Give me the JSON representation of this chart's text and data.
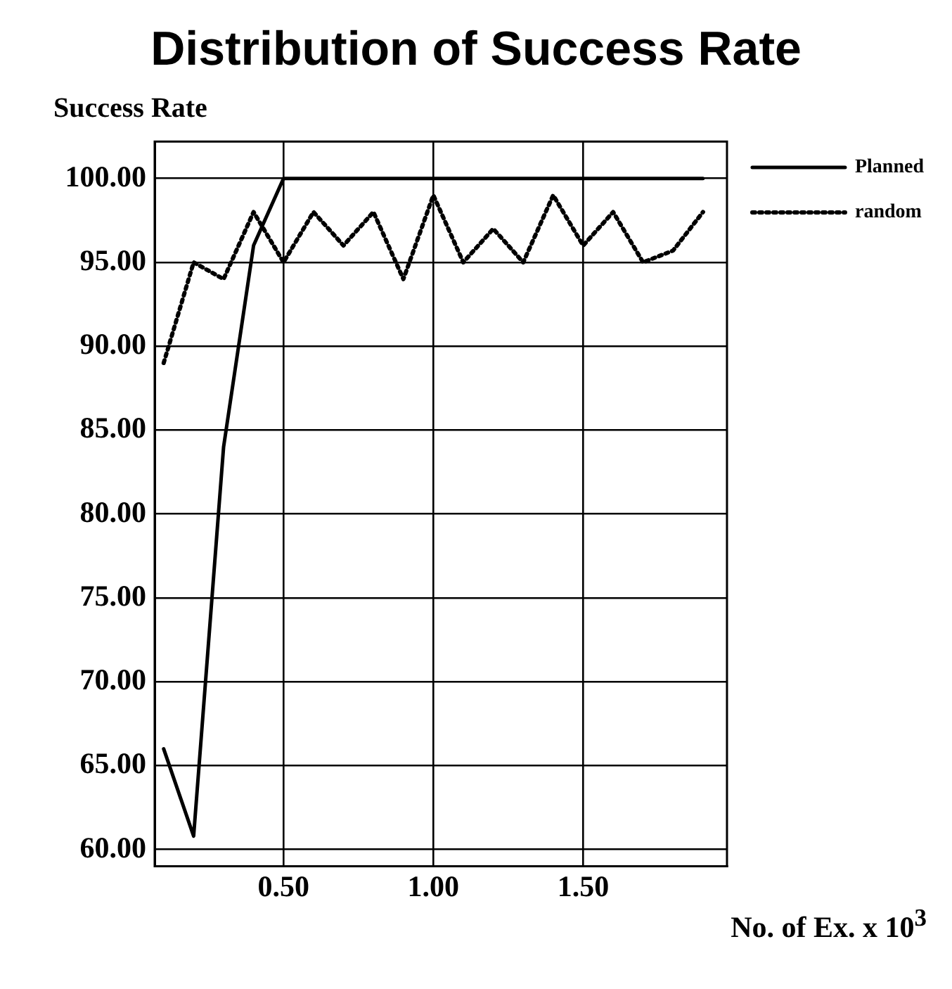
{
  "chart_data": {
    "type": "line",
    "title": "Distribution of Success Rate",
    "xlabel": "No. of Ex. x 10$^{3}$",
    "ylabel": "Success Rate",
    "series": [
      {
        "name": "Planned",
        "color": "#000000",
        "line_style": "solid",
        "x": [
          0.1,
          0.2,
          0.3,
          0.4,
          0.5,
          1.9
        ],
        "values": [
          66,
          60.8,
          84,
          96,
          100,
          100
        ]
      },
      {
        "name": "random",
        "color": "#000000",
        "line_style": "dotted",
        "x": [
          0.1,
          0.2,
          0.3,
          0.4,
          0.5,
          0.6,
          0.7,
          0.8,
          0.9,
          1.0,
          1.1,
          1.2,
          1.3,
          1.4,
          1.5,
          1.6,
          1.7,
          1.8,
          1.9
        ],
        "values": [
          89,
          95,
          94,
          98,
          95,
          98,
          96,
          98,
          94,
          99,
          95,
          97,
          95,
          99,
          96,
          98,
          95,
          95.7,
          98
        ]
      }
    ],
    "xlim": [
      0.07,
      1.98
    ],
    "xticks": [
      {
        "value": 0.5,
        "label": "0.50"
      },
      {
        "value": 1.0,
        "label": "1.00"
      },
      {
        "value": 1.5,
        "label": "1.50"
      }
    ],
    "ylim": [
      59,
      102.2
    ],
    "yticks": [
      {
        "value": 60,
        "label": "60.00"
      },
      {
        "value": 65,
        "label": "65.00"
      },
      {
        "value": 70,
        "label": "70.00"
      },
      {
        "value": 75,
        "label": "75.00"
      },
      {
        "value": 80,
        "label": "80.00"
      },
      {
        "value": 85,
        "label": "85.00"
      },
      {
        "value": 90,
        "label": "90.00"
      },
      {
        "value": 95,
        "label": "95.00"
      },
      {
        "value": 100,
        "label": "100.00"
      }
    ],
    "grid": true,
    "legend": "top right",
    "marker": "none"
  }
}
